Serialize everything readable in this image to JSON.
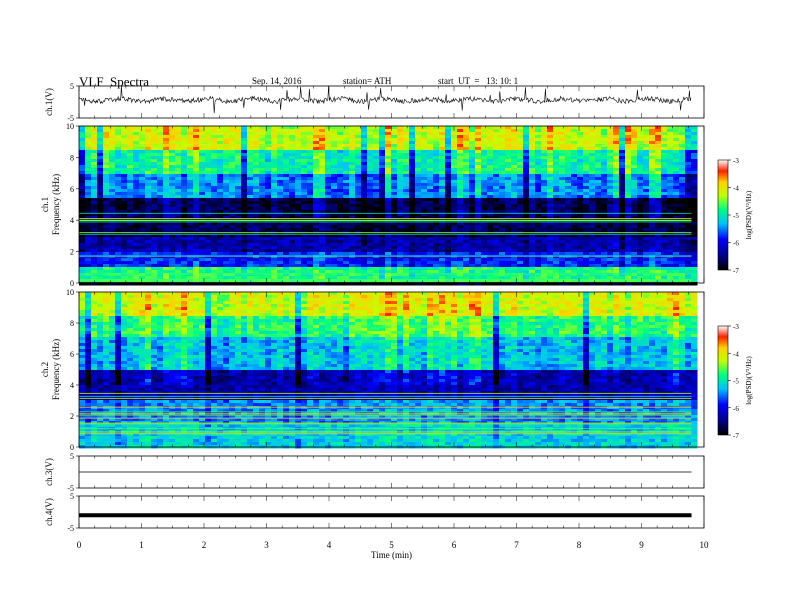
{
  "header": {
    "title": "VLF  Spectra",
    "date": "Sep. 14, 2016",
    "station": "station= ATH",
    "start": "start  UT  =   13: 10: 1"
  },
  "chart_data": [
    {
      "type": "line",
      "name": "ch1-waveform",
      "ylabel": "ch.1(V)",
      "ylim": [
        -5,
        5
      ],
      "yticks": [
        "5",
        "-5"
      ],
      "x": [
        0,
        1,
        2,
        3,
        4,
        5,
        6,
        7,
        8,
        9,
        9.8
      ],
      "y": [
        0,
        0,
        0,
        0,
        0,
        0,
        0,
        0,
        0,
        0,
        0
      ]
    },
    {
      "type": "heatmap",
      "name": "ch1-spectrogram",
      "ylabel": "ch.1\nFrequency  (kHz)",
      "ylabel_lines": [
        "ch.1",
        "Frequency  (kHz)"
      ],
      "ylim": [
        0,
        10
      ],
      "yticks": [
        "0",
        "2",
        "4",
        "6",
        "8",
        "10"
      ],
      "xlim": [
        0,
        10
      ],
      "colorbar": {
        "label": "log(PSD)(V²/Hz)",
        "range": [
          -7,
          -3
        ],
        "ticks": [
          "-3",
          "-4",
          "-5",
          "-6",
          "-7"
        ]
      },
      "bands_kHz": [
        {
          "from": 0.0,
          "to": 1.0,
          "level": -4.8
        },
        {
          "from": 1.0,
          "to": 2.0,
          "level": -5.8
        },
        {
          "from": 2.0,
          "to": 3.0,
          "level": -6.3
        },
        {
          "from": 3.0,
          "to": 5.5,
          "level": -6.7
        },
        {
          "from": 5.5,
          "to": 7.0,
          "level": -5.5
        },
        {
          "from": 7.0,
          "to": 8.5,
          "level": -4.9
        },
        {
          "from": 8.5,
          "to": 10.0,
          "level": -4.2
        }
      ]
    },
    {
      "type": "heatmap",
      "name": "ch2-spectrogram",
      "ylabel": "ch.2\nFrequency  (kHz)",
      "ylabel_lines": [
        "ch.2",
        "Frequency  (kHz)"
      ],
      "ylim": [
        0,
        10
      ],
      "yticks": [
        "0",
        "2",
        "4",
        "6",
        "8",
        "10"
      ],
      "xlim": [
        0,
        10
      ],
      "colorbar": {
        "label": "log(PSD)(V²/Hz)",
        "range": [
          -7,
          -3
        ],
        "ticks": [
          "-3",
          "-4",
          "-5",
          "-6",
          "-7"
        ]
      },
      "bands_kHz": [
        {
          "from": 0.0,
          "to": 1.5,
          "level": -5.2
        },
        {
          "from": 1.5,
          "to": 3.0,
          "level": -5.5
        },
        {
          "from": 3.0,
          "to": 5.0,
          "level": -6.3
        },
        {
          "from": 5.0,
          "to": 7.0,
          "level": -5.3
        },
        {
          "from": 7.0,
          "to": 8.5,
          "level": -4.8
        },
        {
          "from": 8.5,
          "to": 10.0,
          "level": -4.2
        }
      ]
    },
    {
      "type": "line",
      "name": "ch3-waveform",
      "ylabel": "ch.3(V)",
      "ylim": [
        -5,
        5
      ],
      "yticks": [
        "5",
        "-5"
      ],
      "x": [
        0,
        9.8
      ],
      "y": [
        0,
        0
      ]
    },
    {
      "type": "line",
      "name": "ch4-waveform",
      "ylabel": "ch.4(V)",
      "ylim": [
        -5,
        5
      ],
      "yticks": [
        "5",
        "-5"
      ],
      "xlabel": "Time  (min)",
      "xlim": [
        0,
        10
      ],
      "xticks": [
        "0",
        "1",
        "2",
        "3",
        "4",
        "5",
        "6",
        "7",
        "8",
        "9",
        "10"
      ],
      "x": [
        0,
        9.8
      ],
      "y": [
        -1,
        -1
      ]
    }
  ]
}
